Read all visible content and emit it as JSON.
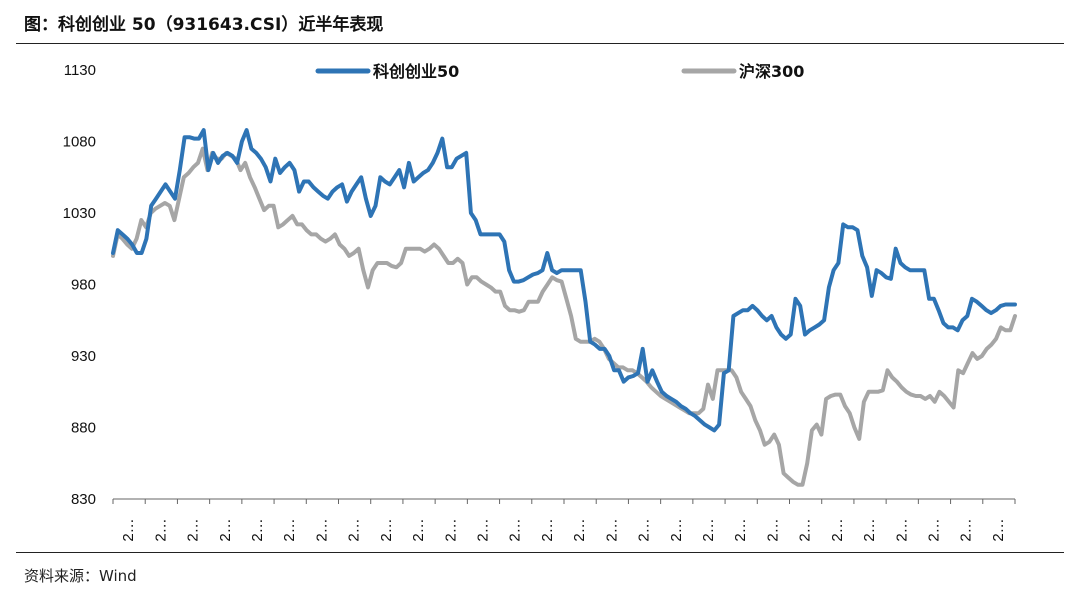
{
  "header": {
    "title": "图：科创创业 50（931643.CSI）近半年表现"
  },
  "footer": {
    "source": "资料来源：Wind"
  },
  "chart_data": {
    "type": "line",
    "ylim": [
      830,
      1130
    ],
    "yticks": [
      830,
      880,
      930,
      980,
      1030,
      1080,
      1130
    ],
    "xtick_labels": [
      "2…",
      "2…",
      "2…",
      "2…",
      "2…",
      "2…",
      "2…",
      "2…",
      "2…",
      "2…",
      "2…",
      "2…",
      "2…",
      "2…",
      "2…",
      "2…",
      "2…",
      "2…",
      "2…",
      "2…",
      "2…",
      "2…",
      "2…",
      "2…",
      "2…",
      "2…",
      "2…",
      "2…"
    ],
    "legend_position": "top",
    "grid": false,
    "series": [
      {
        "name": "科创创业50",
        "color": "#2e74b5",
        "values": [
          1002,
          1018,
          1015,
          1012,
          1008,
          1002,
          1002,
          1012,
          1035,
          1040,
          1045,
          1050,
          1045,
          1040,
          1060,
          1083,
          1083,
          1082,
          1082,
          1088,
          1060,
          1072,
          1065,
          1070,
          1072,
          1070,
          1065,
          1080,
          1088,
          1075,
          1072,
          1068,
          1062,
          1052,
          1068,
          1058,
          1062,
          1065,
          1060,
          1045,
          1052,
          1052,
          1048,
          1045,
          1042,
          1040,
          1045,
          1048,
          1050,
          1038,
          1045,
          1050,
          1055,
          1040,
          1028,
          1035,
          1055,
          1052,
          1050,
          1055,
          1060,
          1048,
          1065,
          1052,
          1055,
          1058,
          1060,
          1065,
          1072,
          1082,
          1062,
          1062,
          1068,
          1070,
          1072,
          1030,
          1025,
          1015,
          1015,
          1015,
          1015,
          1015,
          1010,
          990,
          982,
          982,
          983,
          985,
          987,
          988,
          990,
          1002,
          990,
          988,
          990,
          990,
          990,
          990,
          990,
          968,
          940,
          938,
          935,
          935,
          930,
          920,
          920,
          912,
          915,
          916,
          918,
          935,
          912,
          920,
          912,
          905,
          902,
          900,
          898,
          895,
          893,
          890,
          888,
          885,
          882,
          880,
          878,
          882,
          918,
          920,
          958,
          960,
          962,
          962,
          965,
          962,
          958,
          955,
          958,
          950,
          945,
          942,
          945,
          970,
          965,
          945,
          948,
          950,
          952,
          955,
          978,
          990,
          995,
          1022,
          1020,
          1020,
          1018,
          1000,
          992,
          972,
          990,
          988,
          985,
          984,
          1005,
          995,
          992,
          990,
          990,
          990,
          990,
          970,
          970,
          962,
          953,
          950,
          950,
          948,
          955,
          958,
          970,
          968,
          965,
          962,
          960,
          962,
          965,
          966,
          966,
          966
        ]
      },
      {
        "name": "沪深300",
        "color": "#a6a6a6",
        "values": [
          1000,
          1015,
          1012,
          1008,
          1005,
          1012,
          1025,
          1020,
          1030,
          1033,
          1035,
          1037,
          1035,
          1025,
          1040,
          1055,
          1058,
          1062,
          1065,
          1075,
          1060,
          1072,
          1068,
          1068,
          1072,
          1070,
          1068,
          1060,
          1065,
          1055,
          1048,
          1040,
          1032,
          1035,
          1035,
          1020,
          1022,
          1025,
          1028,
          1022,
          1022,
          1018,
          1015,
          1015,
          1012,
          1010,
          1012,
          1015,
          1008,
          1005,
          1000,
          1002,
          1005,
          990,
          978,
          990,
          995,
          995,
          995,
          993,
          992,
          995,
          1005,
          1005,
          1005,
          1005,
          1003,
          1005,
          1008,
          1005,
          1000,
          995,
          995,
          998,
          995,
          980,
          985,
          985,
          982,
          980,
          978,
          975,
          975,
          965,
          962,
          962,
          961,
          962,
          968,
          968,
          968,
          975,
          980,
          985,
          983,
          982,
          970,
          958,
          942,
          940,
          940,
          940,
          942,
          940,
          935,
          928,
          925,
          922,
          922,
          920,
          920,
          918,
          915,
          912,
          908,
          905,
          902,
          900,
          898,
          896,
          894,
          892,
          890,
          890,
          890,
          893,
          910,
          900,
          920,
          920,
          920,
          920,
          915,
          905,
          900,
          895,
          885,
          878,
          868,
          870,
          875,
          868,
          848,
          845,
          842,
          840,
          840,
          855,
          878,
          882,
          875,
          900,
          902,
          903,
          903,
          895,
          890,
          880,
          872,
          898,
          905,
          905,
          905,
          906,
          920,
          915,
          912,
          908,
          905,
          903,
          902,
          902,
          900,
          902,
          898,
          905,
          902,
          898,
          894,
          920,
          918,
          925,
          932,
          928,
          930,
          935,
          938,
          942,
          950,
          948,
          948,
          958
        ]
      }
    ]
  }
}
